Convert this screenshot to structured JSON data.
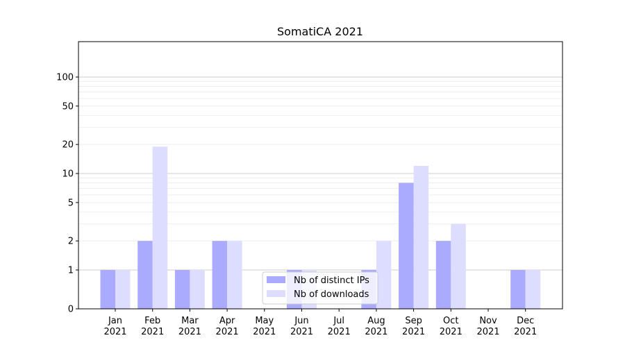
{
  "chart_data": {
    "type": "bar",
    "title": "SomatiCA 2021",
    "xlabel": "",
    "ylabel": "",
    "yscale": "symlog",
    "ylim": [
      0,
      120
    ],
    "grid": "horizontal",
    "legend_position": "lower-center",
    "categories": [
      [
        "Jan",
        "2021"
      ],
      [
        "Feb",
        "2021"
      ],
      [
        "Mar",
        "2021"
      ],
      [
        "Apr",
        "2021"
      ],
      [
        "May",
        "2021"
      ],
      [
        "Jun",
        "2021"
      ],
      [
        "Jul",
        "2021"
      ],
      [
        "Aug",
        "2021"
      ],
      [
        "Sep",
        "2021"
      ],
      [
        "Oct",
        "2021"
      ],
      [
        "Nov",
        "2021"
      ],
      [
        "Dec",
        "2021"
      ]
    ],
    "yticks": [
      0,
      1,
      2,
      5,
      10,
      20,
      50,
      100
    ],
    "series": [
      {
        "name": "Nb of distinct IPs",
        "color": "#aaaaff",
        "values": [
          1,
          2,
          1,
          2,
          0,
          1,
          0,
          1,
          8,
          2,
          0,
          1
        ]
      },
      {
        "name": "Nb of downloads",
        "color": "#ddddff",
        "values": [
          1,
          19,
          1,
          2,
          0,
          1,
          0,
          2,
          12,
          3,
          0,
          1
        ]
      }
    ]
  }
}
